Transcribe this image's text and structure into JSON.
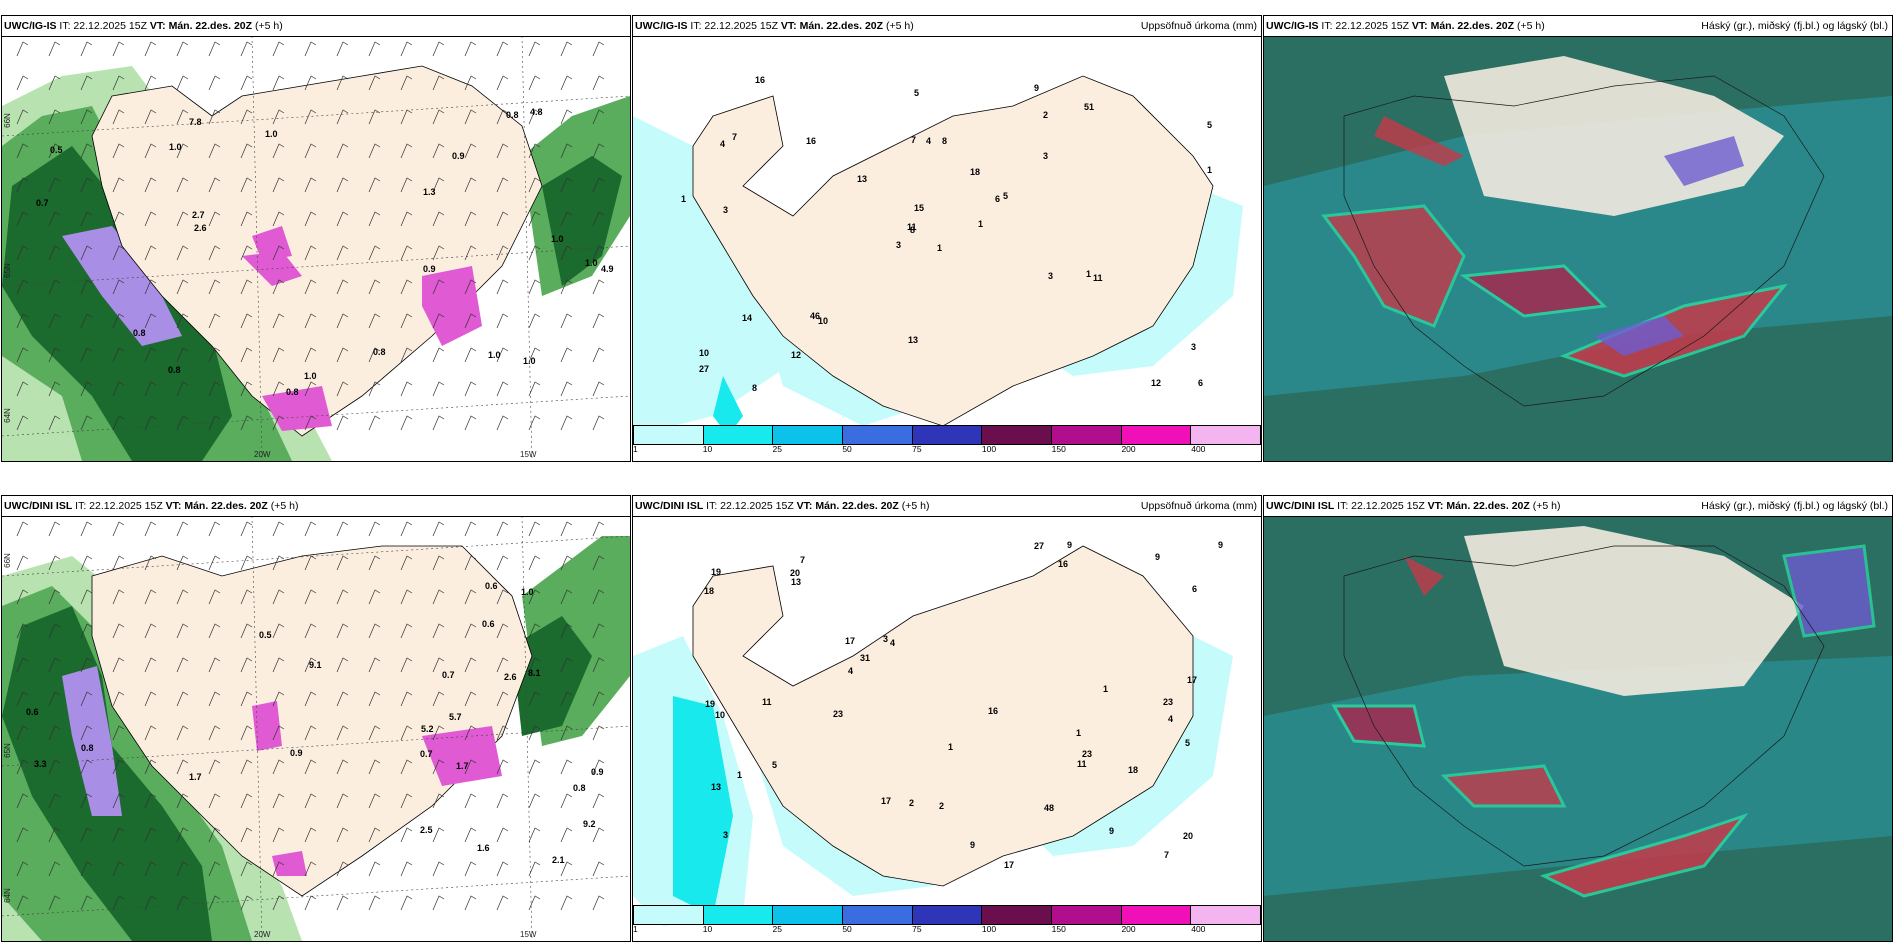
{
  "panels": [
    {
      "model": "UWC/IG-IS",
      "it": "IT: 22.12.2025 15Z",
      "vt_label": "VT:",
      "vt": "Mán. 22.des. 20Z",
      "lead": "(+5 h)",
      "right": ""
    },
    {
      "model": "UWC/IG-IS",
      "it": "IT: 22.12.2025 15Z",
      "vt_label": "VT:",
      "vt": "Mán. 22.des. 20Z",
      "lead": "(+5 h)",
      "right": "Uppsöfnuð úrkoma (mm)"
    },
    {
      "model": "UWC/IG-IS",
      "it": "IT: 22.12.2025 15Z",
      "vt_label": "VT:",
      "vt": "Mán. 22.des. 20Z",
      "lead": "(+5 h)",
      "right": "Háský (gr.), miðský (fj.bl.) og lágský (bl.)"
    },
    {
      "model": "UWC/DINI ISL",
      "it": "IT: 22.12.2025 15Z",
      "vt_label": "VT:",
      "vt": "Mán. 22.des. 20Z",
      "lead": "(+5 h)",
      "right": ""
    },
    {
      "model": "UWC/DINI ISL",
      "it": "IT: 22.12.2025 15Z",
      "vt_label": "VT:",
      "vt": "Mán. 22.des. 20Z",
      "lead": "(+5 h)",
      "right": "Uppsöfnuð úrkoma (mm)"
    },
    {
      "model": "UWC/DINI ISL",
      "it": "IT: 22.12.2025 15Z",
      "vt_label": "VT:",
      "vt": "Mán. 22.des. 20Z",
      "lead": "(+5 h)",
      "right": "Háský (gr.), miðský (fj.bl.) og lágský (bl.)"
    }
  ],
  "colorbar": {
    "labels": [
      "1",
      "10",
      "25",
      "50",
      "75",
      "100",
      "150",
      "200",
      "400"
    ],
    "colors": [
      "#c6fbfb",
      "#17e9ec",
      "#0cc2ea",
      "#3a6ee0",
      "#2e35b8",
      "#6a0e4e",
      "#b00e8c",
      "#f010b8",
      "#f3b4f0"
    ]
  },
  "grid_labels": {
    "lon": [
      "20W",
      "15W"
    ],
    "lat": [
      "66N",
      "65N",
      "64N"
    ]
  },
  "precip_top_values": [
    "1",
    "4",
    "8",
    "10",
    "6",
    "10",
    "9",
    "8",
    "2",
    "1",
    "16",
    "6",
    "3",
    "5",
    "3",
    "3",
    "8",
    "7",
    "18",
    "14",
    "13",
    "27",
    "12",
    "4",
    "5",
    "11",
    "7",
    "5",
    "1",
    "3",
    "1",
    "11",
    "13",
    "15",
    "16",
    "51",
    "46",
    "12",
    "3",
    "1"
  ],
  "precip_bottom_values": [
    "1",
    "4",
    "3",
    "7",
    "4",
    "9",
    "13",
    "16",
    "17",
    "17",
    "18",
    "19",
    "19",
    "20",
    "17",
    "17",
    "1",
    "16",
    "3",
    "5",
    "9",
    "9",
    "4",
    "5",
    "27",
    "20",
    "23",
    "10",
    "13",
    "1",
    "9",
    "48",
    "31",
    "23",
    "23",
    "18",
    "11",
    "11",
    "2",
    "1",
    "6",
    "9",
    "7",
    "2"
  ],
  "wind_top_values": [
    "0.5",
    "1.0",
    "1.3",
    "1.0",
    "0.8",
    "0.8",
    "0.9",
    "2.6",
    "4.8",
    "4.9",
    "1.0",
    "7.8",
    "0.9",
    "0.8",
    "0.7",
    "0.8",
    "2.7",
    "1.0",
    "1.0",
    "0.8",
    "1.0",
    "1.0"
  ],
  "wind_bottom_values": [
    "0.7",
    "0.9",
    "2.6",
    "0.8",
    "2.5",
    "0.6",
    "8.1",
    "9.1",
    "9.2",
    "1.6",
    "5.7",
    "5.2",
    "3.3",
    "1.7",
    "1.7",
    "2.1",
    "1.0",
    "0.8",
    "0.6",
    "0.5",
    "0.9",
    "0.6",
    "0.7"
  ],
  "colors": {
    "land": "#fbeedf",
    "shelf_green": "#1b6a2e",
    "mid_green": "#59ad5c",
    "light_green": "#b8e3b0",
    "purple": "#a98ee6",
    "magenta": "#e05ad4",
    "cloud_bg": "#2b6f62",
    "cloud_teal": "#2a9aa5",
    "cloud_red": "#c53a4a"
  }
}
